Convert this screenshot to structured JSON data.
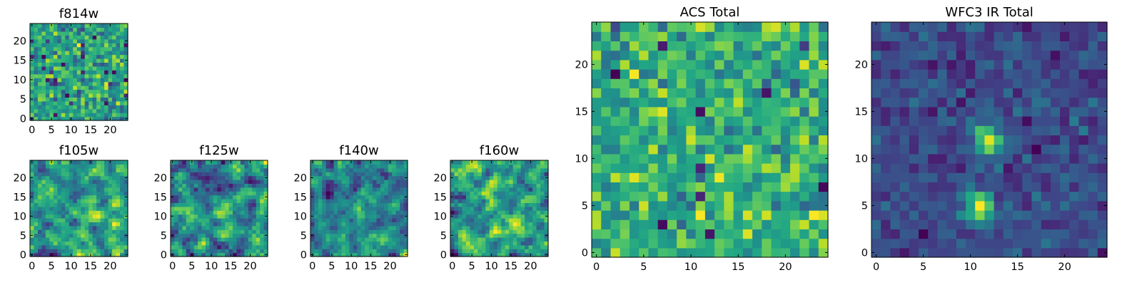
{
  "chart_data": {
    "type": "heatmap",
    "colormap": "viridis",
    "grid_size": 25,
    "panels": [
      {
        "id": "f814w",
        "title": "f814w",
        "xticks": [
          0,
          5,
          10,
          15,
          20
        ],
        "yticks": [
          0,
          5,
          10,
          15,
          20
        ],
        "xlim": [
          -0.5,
          24.5
        ],
        "ylim": [
          -0.5,
          24.5
        ]
      },
      {
        "id": "f105w",
        "title": "f105w",
        "xticks": [
          0,
          5,
          10,
          15,
          20
        ],
        "yticks": [
          0,
          5,
          10,
          15,
          20
        ],
        "xlim": [
          -0.5,
          24.5
        ],
        "ylim": [
          -0.5,
          24.5
        ]
      },
      {
        "id": "f125w",
        "title": "f125w",
        "xticks": [
          0,
          5,
          10,
          15,
          20
        ],
        "yticks": [
          0,
          5,
          10,
          15,
          20
        ],
        "xlim": [
          -0.5,
          24.5
        ],
        "ylim": [
          -0.5,
          24.5
        ]
      },
      {
        "id": "f140w",
        "title": "f140w",
        "xticks": [
          0,
          5,
          10,
          15,
          20
        ],
        "yticks": [
          0,
          5,
          10,
          15,
          20
        ],
        "xlim": [
          -0.5,
          24.5
        ],
        "ylim": [
          -0.5,
          24.5
        ]
      },
      {
        "id": "f160w",
        "title": "f160w",
        "xticks": [
          0,
          5,
          10,
          15,
          20
        ],
        "yticks": [
          0,
          5,
          10,
          15,
          20
        ],
        "xlim": [
          -0.5,
          24.5
        ],
        "ylim": [
          -0.5,
          24.5
        ]
      },
      {
        "id": "acs-total",
        "title": "ACS Total",
        "xticks": [
          0,
          5,
          10,
          15,
          20
        ],
        "yticks": [
          0,
          5,
          10,
          15,
          20
        ],
        "xlim": [
          -0.5,
          24.5
        ],
        "ylim": [
          -0.5,
          24.5
        ]
      },
      {
        "id": "wfc3-ir-total",
        "title": "WFC3 IR Total",
        "xticks": [
          0,
          5,
          10,
          15,
          20
        ],
        "yticks": [
          0,
          5,
          10,
          15,
          20
        ],
        "xlim": [
          -0.5,
          24.5
        ],
        "ylim": [
          -0.5,
          24.5
        ],
        "bright_sources": [
          {
            "x": 12,
            "y": 12,
            "note": "compact bright blob"
          },
          {
            "x": 11,
            "y": 5,
            "note": "extended bright blob"
          }
        ]
      }
    ]
  }
}
